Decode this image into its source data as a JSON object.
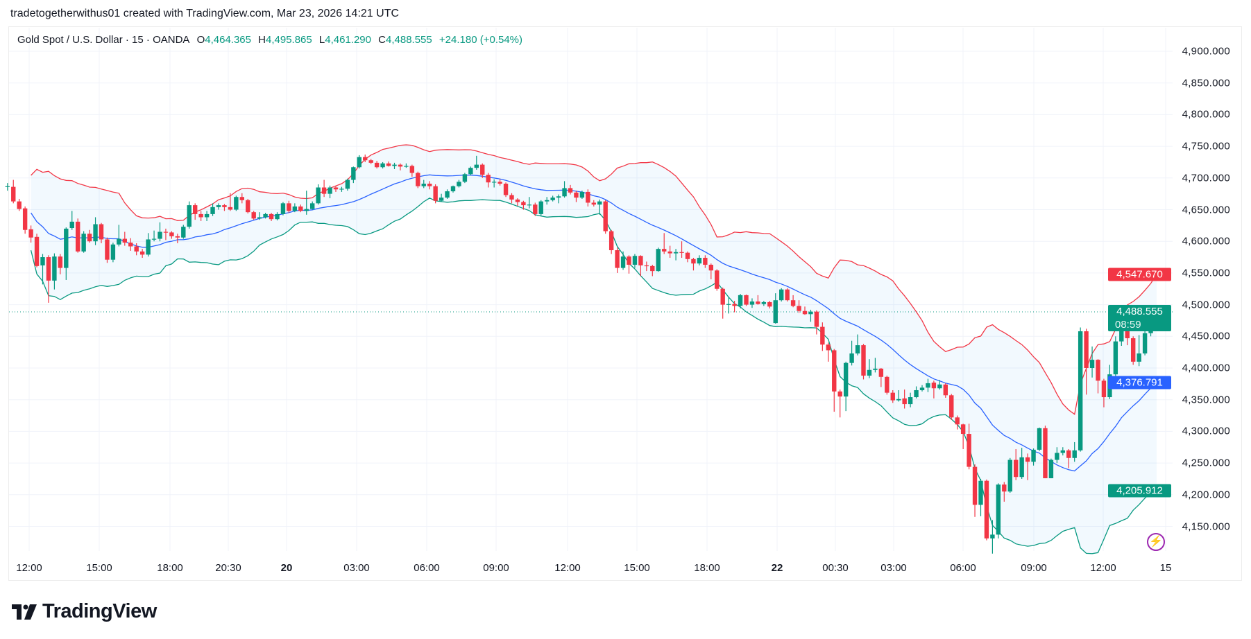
{
  "attribution": "tradetogetherwithus01 created with TradingView.com, Mar 23, 2026 14:21 UTC",
  "legend": {
    "symbol": "Gold Spot / U.S. Dollar · 15 · OANDA",
    "o_label": "O",
    "o": "4,464.365",
    "h_label": "H",
    "h": "4,495.865",
    "l_label": "L",
    "l": "4,461.290",
    "c_label": "C",
    "c": "4,488.555",
    "change": "+24.180 (+0.54%)"
  },
  "price_axis": {
    "labels": [
      "4,900.000",
      "4,850.000",
      "4,800.000",
      "4,750.000",
      "4,700.000",
      "4,650.000",
      "4,600.000",
      "4,550.000",
      "4,500.000",
      "4,450.000",
      "4,400.000",
      "4,350.000",
      "4,300.000",
      "4,250.000",
      "4,200.000",
      "4,150.000"
    ]
  },
  "time_axis": {
    "labels": [
      "12:00",
      "15:00",
      "18:00",
      "20:30",
      "20",
      "03:00",
      "06:00",
      "09:00",
      "12:00",
      "15:00",
      "18:00",
      "22",
      "00:30",
      "03:00",
      "06:00",
      "09:00",
      "12:00",
      "15"
    ]
  },
  "badges": {
    "upper_band": "4,547.670",
    "last_price": "4,488.555",
    "countdown": "08:59",
    "basis": "4,376.791",
    "lower_band": "4,205.912"
  },
  "logo": {
    "text": "TradingView"
  },
  "icons": {
    "alert": "lightning-bolt-icon",
    "logo": "tradingview-logo-icon"
  },
  "colors": {
    "up": "#089981",
    "down": "#F23645",
    "upper_band": "#F23645",
    "basis": "#2962FF",
    "lower_band": "#089981",
    "band_fill": "#2196F3",
    "upper_badge": "#F23645",
    "basis_badge": "#2962FF",
    "last_badge": "#089981",
    "lower_badge": "#089981",
    "alert_icon": "#9C27B0"
  },
  "chart_data": {
    "type": "candlestick",
    "symbol": "Gold Spot / U.S. Dollar",
    "interval": "15",
    "overlays": [
      "bollinger-bands"
    ],
    "ylim": [
      4100,
      4920
    ],
    "last_price": 4488.555,
    "upper_band_last": 4547.67,
    "basis_last": 4376.791,
    "lower_band_last": 4205.912,
    "grid": true,
    "candles_ohlc": [
      [
        4686,
        4692,
        4680,
        4687
      ],
      [
        4686,
        4697,
        4660,
        4663
      ],
      [
        4663,
        4667,
        4648,
        4651
      ],
      [
        4652,
        4655,
        4612,
        4618
      ],
      [
        4619,
        4625,
        4598,
        4606
      ],
      [
        4607,
        4612,
        4559,
        4561
      ],
      [
        4562,
        4580,
        4532,
        4575
      ],
      [
        4575,
        4578,
        4503,
        4538
      ],
      [
        4538,
        4581,
        4524,
        4576
      ],
      [
        4576,
        4580,
        4548,
        4558
      ],
      [
        4558,
        4622,
        4539,
        4620
      ],
      [
        4621,
        4648,
        4618,
        4631
      ],
      [
        4631,
        4636,
        4582,
        4584
      ],
      [
        4584,
        4616,
        4582,
        4612
      ],
      [
        4612,
        4618,
        4598,
        4600
      ],
      [
        4600,
        4638,
        4594,
        4627
      ],
      [
        4627,
        4629,
        4597,
        4603
      ],
      [
        4603,
        4606,
        4566,
        4571
      ],
      [
        4571,
        4598,
        4567,
        4595
      ],
      [
        4595,
        4626,
        4592,
        4604
      ],
      [
        4604,
        4615,
        4593,
        4598
      ],
      [
        4598,
        4605,
        4585,
        4592
      ],
      [
        4592,
        4597,
        4578,
        4584
      ],
      [
        4584,
        4588,
        4574,
        4579
      ],
      [
        4579,
        4613,
        4576,
        4603
      ],
      [
        4603,
        4617,
        4600,
        4604
      ],
      [
        4604,
        4630,
        4600,
        4615
      ],
      [
        4615,
        4620,
        4602,
        4614
      ],
      [
        4614,
        4616,
        4604,
        4608
      ],
      [
        4608,
        4612,
        4597,
        4606
      ],
      [
        4606,
        4626,
        4604,
        4623
      ],
      [
        4623,
        4663,
        4620,
        4657
      ],
      [
        4657,
        4660,
        4634,
        4643
      ],
      [
        4643,
        4648,
        4632,
        4638
      ],
      [
        4638,
        4648,
        4632,
        4643
      ],
      [
        4643,
        4660,
        4640,
        4654
      ],
      [
        4654,
        4660,
        4650,
        4657
      ],
      [
        4657,
        4659,
        4648,
        4654
      ],
      [
        4654,
        4676,
        4648,
        4650
      ],
      [
        4650,
        4672,
        4648,
        4670
      ],
      [
        4670,
        4676,
        4660,
        4665
      ],
      [
        4665,
        4667,
        4644,
        4646
      ],
      [
        4646,
        4648,
        4634,
        4636
      ],
      [
        4636,
        4646,
        4634,
        4638
      ],
      [
        4638,
        4645,
        4636,
        4643
      ],
      [
        4643,
        4645,
        4632,
        4635
      ],
      [
        4635,
        4646,
        4633,
        4643
      ],
      [
        4643,
        4662,
        4641,
        4660
      ],
      [
        4660,
        4664,
        4645,
        4648
      ],
      [
        4648,
        4660,
        4646,
        4655
      ],
      [
        4655,
        4658,
        4646,
        4648
      ],
      [
        4648,
        4680,
        4642,
        4651
      ],
      [
        4651,
        4663,
        4650,
        4660
      ],
      [
        4660,
        4690,
        4658,
        4685
      ],
      [
        4685,
        4697,
        4670,
        4675
      ],
      [
        4675,
        4688,
        4668,
        4685
      ],
      [
        4685,
        4687,
        4678,
        4682
      ],
      [
        4682,
        4686,
        4678,
        4683
      ],
      [
        4683,
        4699,
        4680,
        4697
      ],
      [
        4697,
        4718,
        4692,
        4717
      ],
      [
        4717,
        4736,
        4715,
        4733
      ],
      [
        4733,
        4737,
        4725,
        4728
      ],
      [
        4728,
        4730,
        4722,
        4724
      ],
      [
        4724,
        4727,
        4715,
        4717
      ],
      [
        4717,
        4725,
        4715,
        4723
      ],
      [
        4723,
        4726,
        4718,
        4719
      ],
      [
        4719,
        4724,
        4714,
        4721
      ],
      [
        4721,
        4723,
        4712,
        4718
      ],
      [
        4718,
        4723,
        4716,
        4719
      ],
      [
        4719,
        4721,
        4702,
        4708
      ],
      [
        4708,
        4710,
        4684,
        4687
      ],
      [
        4687,
        4697,
        4684,
        4691
      ],
      [
        4691,
        4695,
        4682,
        4687
      ],
      [
        4687,
        4690,
        4660,
        4664
      ],
      [
        4664,
        4675,
        4662,
        4669
      ],
      [
        4669,
        4682,
        4667,
        4679
      ],
      [
        4679,
        4688,
        4677,
        4687
      ],
      [
        4687,
        4697,
        4685,
        4694
      ],
      [
        4694,
        4708,
        4692,
        4706
      ],
      [
        4706,
        4718,
        4704,
        4716
      ],
      [
        4716,
        4735,
        4713,
        4721
      ],
      [
        4721,
        4723,
        4700,
        4705
      ],
      [
        4705,
        4708,
        4685,
        4693
      ],
      [
        4693,
        4698,
        4685,
        4694
      ],
      [
        4694,
        4698,
        4688,
        4691
      ],
      [
        4691,
        4693,
        4670,
        4673
      ],
      [
        4673,
        4676,
        4660,
        4666
      ],
      [
        4666,
        4668,
        4656,
        4662
      ],
      [
        4662,
        4664,
        4650,
        4657
      ],
      [
        4657,
        4670,
        4652,
        4658
      ],
      [
        4658,
        4661,
        4640,
        4643
      ],
      [
        4643,
        4665,
        4640,
        4663
      ],
      [
        4663,
        4670,
        4658,
        4665
      ],
      [
        4665,
        4672,
        4663,
        4669
      ],
      [
        4669,
        4674,
        4660,
        4671
      ],
      [
        4671,
        4695,
        4669,
        4684
      ],
      [
        4684,
        4689,
        4674,
        4677
      ],
      [
        4677,
        4680,
        4662,
        4669
      ],
      [
        4669,
        4680,
        4667,
        4678
      ],
      [
        4678,
        4682,
        4655,
        4661
      ],
      [
        4661,
        4665,
        4655,
        4658
      ],
      [
        4658,
        4666,
        4642,
        4663
      ],
      [
        4663,
        4665,
        4612,
        4616
      ],
      [
        4616,
        4618,
        4580,
        4586
      ],
      [
        4586,
        4590,
        4550,
        4558
      ],
      [
        4558,
        4584,
        4555,
        4576
      ],
      [
        4576,
        4578,
        4549,
        4563
      ],
      [
        4563,
        4580,
        4558,
        4577
      ],
      [
        4577,
        4578,
        4545,
        4562
      ],
      [
        4562,
        4568,
        4553,
        4561
      ],
      [
        4561,
        4563,
        4545,
        4553
      ],
      [
        4553,
        4590,
        4552,
        4588
      ],
      [
        4588,
        4613,
        4580,
        4584
      ],
      [
        4584,
        4593,
        4574,
        4581
      ],
      [
        4581,
        4588,
        4570,
        4583
      ],
      [
        4583,
        4600,
        4574,
        4582
      ],
      [
        4582,
        4584,
        4567,
        4572
      ],
      [
        4572,
        4574,
        4554,
        4565
      ],
      [
        4565,
        4578,
        4562,
        4574
      ],
      [
        4574,
        4578,
        4558,
        4563
      ],
      [
        4563,
        4565,
        4540,
        4554
      ],
      [
        4554,
        4556,
        4522,
        4525
      ],
      [
        4525,
        4527,
        4478,
        4500
      ],
      [
        4500,
        4512,
        4486,
        4501
      ],
      [
        4501,
        4506,
        4488,
        4498
      ],
      [
        4498,
        4517,
        4494,
        4515
      ],
      [
        4515,
        4516,
        4498,
        4500
      ],
      [
        4500,
        4510,
        4495,
        4505
      ],
      [
        4505,
        4515,
        4500,
        4501
      ],
      [
        4501,
        4506,
        4498,
        4504
      ],
      [
        4504,
        4506,
        4494,
        4497
      ],
      [
        4471,
        4518,
        4470,
        4507
      ],
      [
        4507,
        4526,
        4505,
        4524
      ],
      [
        4524,
        4526,
        4505,
        4507
      ],
      [
        4507,
        4515,
        4496,
        4498
      ],
      [
        4498,
        4507,
        4487,
        4490
      ],
      [
        4490,
        4497,
        4484,
        4485
      ],
      [
        4485,
        4492,
        4473,
        4489
      ],
      [
        4489,
        4491,
        4453,
        4465
      ],
      [
        4465,
        4472,
        4427,
        4437
      ],
      [
        4437,
        4440,
        4410,
        4428
      ],
      [
        4428,
        4430,
        4331,
        4363
      ],
      [
        4363,
        4366,
        4322,
        4355
      ],
      [
        4355,
        4410,
        4332,
        4408
      ],
      [
        4408,
        4443,
        4404,
        4423
      ],
      [
        4423,
        4453,
        4420,
        4436
      ],
      [
        4436,
        4438,
        4382,
        4388
      ],
      [
        4388,
        4414,
        4384,
        4397
      ],
      [
        4397,
        4416,
        4393,
        4399
      ],
      [
        4399,
        4400,
        4370,
        4386
      ],
      [
        4386,
        4388,
        4358,
        4361
      ],
      [
        4361,
        4365,
        4345,
        4349
      ],
      [
        4349,
        4365,
        4347,
        4351
      ],
      [
        4352,
        4366,
        4336,
        4343
      ],
      [
        4343,
        4361,
        4338,
        4354
      ],
      [
        4354,
        4371,
        4352,
        4365
      ],
      [
        4365,
        4373,
        4363,
        4369
      ],
      [
        4369,
        4383,
        4362,
        4376
      ],
      [
        4377,
        4380,
        4352,
        4368
      ],
      [
        4368,
        4381,
        4366,
        4374
      ],
      [
        4374,
        4376,
        4353,
        4357
      ],
      [
        4357,
        4359,
        4318,
        4322
      ],
      [
        4322,
        4325,
        4303,
        4311
      ],
      [
        4311,
        4312,
        4272,
        4296
      ],
      [
        4296,
        4312,
        4240,
        4244
      ],
      [
        4244,
        4248,
        4165,
        4184
      ],
      [
        4184,
        4225,
        4166,
        4222
      ],
      [
        4222,
        4224,
        4128,
        4131
      ],
      [
        4131,
        4160,
        4107,
        4137
      ],
      [
        4137,
        4218,
        4131,
        4216
      ],
      [
        4216,
        4220,
        4189,
        4205
      ],
      [
        4205,
        4258,
        4203,
        4255
      ],
      [
        4255,
        4272,
        4223,
        4228
      ],
      [
        4228,
        4274,
        4225,
        4259
      ],
      [
        4259,
        4265,
        4223,
        4252
      ],
      [
        4252,
        4273,
        4246,
        4271
      ],
      [
        4271,
        4306,
        4269,
        4305
      ],
      [
        4305,
        4309,
        4226,
        4226
      ],
      [
        4226,
        4257,
        4226,
        4255
      ],
      [
        4255,
        4275,
        4250,
        4266
      ],
      [
        4266,
        4275,
        4262,
        4270
      ],
      [
        4270,
        4272,
        4242,
        4258
      ],
      [
        4258,
        4283,
        4252,
        4270
      ],
      [
        4270,
        4464,
        4268,
        4458
      ],
      [
        4458,
        4462,
        4358,
        4400
      ],
      [
        4400,
        4434,
        4385,
        4413
      ],
      [
        4413,
        4414,
        4360,
        4380
      ],
      [
        4380,
        4383,
        4338,
        4354
      ],
      [
        4354,
        4405,
        4351,
        4390
      ],
      [
        4390,
        4450,
        4375,
        4442
      ],
      [
        4442,
        4493,
        4435,
        4479
      ],
      [
        4479,
        4482,
        4436,
        4447
      ],
      [
        4447,
        4450,
        4405,
        4410
      ],
      [
        4410,
        4452,
        4403,
        4423
      ],
      [
        4423,
        4468,
        4420,
        4455
      ],
      [
        4455,
        4480,
        4450,
        4465
      ],
      [
        4464.365,
        4495.865,
        4461.29,
        4488.555
      ]
    ]
  }
}
